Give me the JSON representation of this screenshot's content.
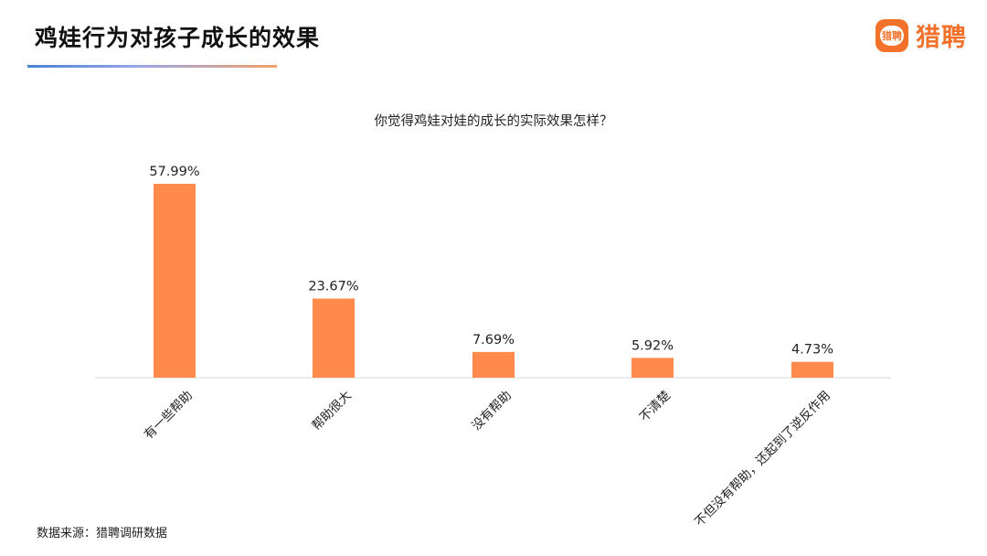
{
  "header": {
    "title": "鸡娃行为对孩子成长的效果",
    "logo_badge_text": "猎聘",
    "logo_text": "猎聘",
    "accent_color": "#f2722c"
  },
  "chart_data": {
    "type": "bar",
    "title": "你觉得鸡娃对娃的成长的实际效果怎样？",
    "categories": [
      "有一些帮助",
      "帮助很大",
      "没有帮助",
      "不清楚",
      "不但没有帮助，还起到了逆反作用"
    ],
    "values": [
      57.99,
      23.67,
      7.69,
      5.92,
      4.73
    ],
    "value_labels": [
      "57.99%",
      "23.67%",
      "7.69%",
      "5.92%",
      "4.73%"
    ],
    "unit": "%",
    "ylim": [
      0,
      60
    ],
    "bar_color": "#ff8a4c",
    "grid": false,
    "legend": "none"
  },
  "footer": {
    "source": "数据来源：猎聘调研数据"
  }
}
